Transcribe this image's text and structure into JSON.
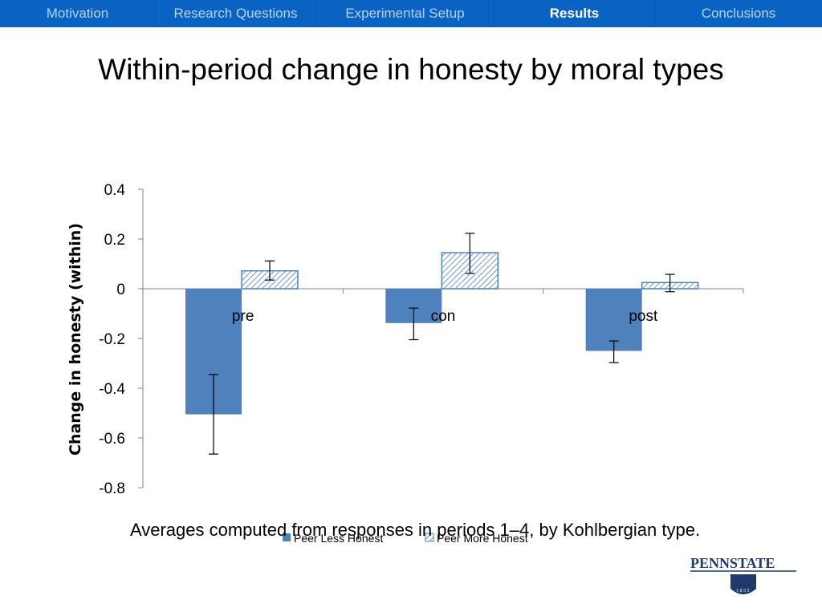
{
  "nav": {
    "items": [
      {
        "label": "Motivation",
        "active": false
      },
      {
        "label": "Research Questions",
        "active": false
      },
      {
        "label": "Experimental Setup",
        "active": false
      },
      {
        "label": "Results",
        "active": true
      },
      {
        "label": "Conclusions",
        "active": false
      }
    ]
  },
  "slide": {
    "title": "Within-period change in honesty by moral types",
    "caption": "Averages computed from responses in periods 1–4, by Kohlbergian type."
  },
  "logo": {
    "text": "PENNSTATE",
    "year": "1855"
  },
  "colors": {
    "navbar": "#0a63c2",
    "series_solid": "#4f81bd",
    "series_hatch_stroke": "#4f81bd",
    "axis": "#868686"
  },
  "chart_data": {
    "type": "bar",
    "categories": [
      "pre",
      "con",
      "post"
    ],
    "series": [
      {
        "name": "Peer Less Honest",
        "values": [
          -0.505,
          -0.138,
          -0.25
        ],
        "error_low": [
          -0.665,
          -0.205,
          -0.297
        ],
        "error_high": [
          -0.345,
          -0.078,
          -0.21
        ],
        "fill": "solid"
      },
      {
        "name": "Peer More Honest",
        "values": [
          0.072,
          0.145,
          0.025
        ],
        "error_low": [
          0.035,
          0.062,
          -0.012
        ],
        "error_high": [
          0.112,
          0.223,
          0.058
        ],
        "fill": "hatched"
      }
    ],
    "ylabel": "Change in honesty (within)",
    "ylim": [
      -0.8,
      0.4
    ],
    "yticks": [
      "0.4",
      "0.2",
      "0",
      "-0.2",
      "-0.4",
      "-0.6",
      "-0.8"
    ],
    "ytick_values": [
      0.4,
      0.2,
      0,
      -0.2,
      -0.4,
      -0.6,
      -0.8
    ],
    "grid": false,
    "legend_position": "bottom"
  }
}
